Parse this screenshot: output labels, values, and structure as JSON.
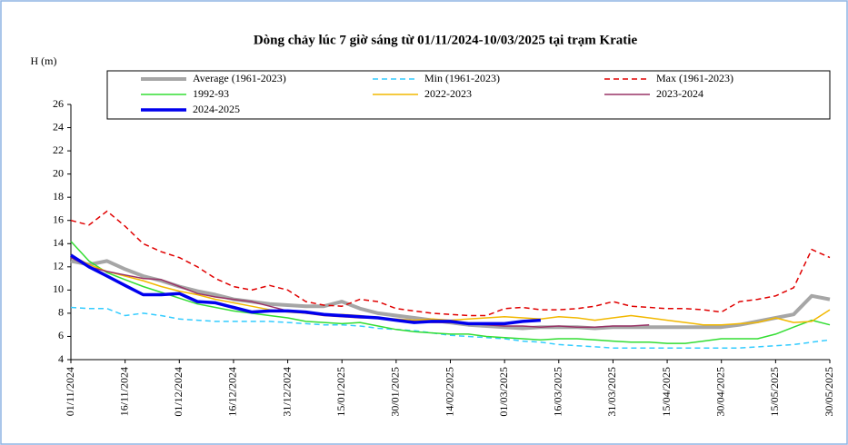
{
  "chart_data": {
    "type": "line",
    "title": "Dòng chảy lúc 7 giờ sáng từ 01/11/2024-10/03/2025 tại trạm Kratie",
    "y_label": "H (m)",
    "categories": [
      "01/11/2024",
      null,
      null,
      "16/11/2024",
      null,
      null,
      "01/12/2024",
      null,
      null,
      "16/12/2024",
      null,
      null,
      "31/12/2024",
      null,
      null,
      "15/01/2025",
      null,
      null,
      "30/01/2025",
      null,
      null,
      "14/02/2025",
      null,
      null,
      "01/03/2025",
      null,
      null,
      "16/03/2025",
      null,
      null,
      "31/03/2025",
      null,
      null,
      "15/04/2025",
      null,
      null,
      "30/04/2025",
      null,
      null,
      "15/05/2025",
      null,
      null,
      "30/05/2025"
    ],
    "ylim": [
      4,
      26
    ],
    "yticks": [
      4,
      6,
      8,
      10,
      12,
      14,
      16,
      18,
      20,
      22,
      24,
      26
    ],
    "grid": false,
    "series": [
      {
        "name": "Average (1961-2023)",
        "color": "#a6a6a6",
        "width": 4,
        "dash": false,
        "values": [
          12.5,
          12.2,
          12.5,
          11.8,
          11.2,
          10.8,
          10.3,
          9.9,
          9.6,
          9.2,
          9.0,
          8.8,
          8.7,
          8.6,
          8.6,
          9.0,
          8.4,
          8.0,
          7.8,
          7.6,
          7.4,
          7.2,
          7.0,
          6.9,
          6.8,
          6.7,
          6.8,
          6.8,
          6.8,
          6.7,
          6.8,
          6.8,
          6.8,
          6.8,
          6.8,
          6.8,
          6.8,
          7.0,
          7.3,
          7.6,
          7.9,
          9.5,
          9.2
        ]
      },
      {
        "name": "Min (1961-2023)",
        "color": "#33ccff",
        "width": 1.5,
        "dash": true,
        "values": [
          8.5,
          8.4,
          8.4,
          7.8,
          8.0,
          7.8,
          7.5,
          7.4,
          7.3,
          7.3,
          7.3,
          7.3,
          7.2,
          7.1,
          7.0,
          7.0,
          6.9,
          6.7,
          6.6,
          6.5,
          6.3,
          6.1,
          6.0,
          5.9,
          5.8,
          5.6,
          5.5,
          5.3,
          5.2,
          5.1,
          5.0,
          5.0,
          5.0,
          5.0,
          5.0,
          5.0,
          5.0,
          5.0,
          5.1,
          5.2,
          5.3,
          5.5,
          5.7
        ]
      },
      {
        "name": "Max (1961-2023)",
        "color": "#e00000",
        "width": 1.5,
        "dash": true,
        "values": [
          16.0,
          15.6,
          16.8,
          15.5,
          14.0,
          13.3,
          12.8,
          12.0,
          11.0,
          10.3,
          10.0,
          10.4,
          10.0,
          9.0,
          8.7,
          8.6,
          9.2,
          9.0,
          8.4,
          8.2,
          8.0,
          7.9,
          7.8,
          7.8,
          8.4,
          8.5,
          8.3,
          8.3,
          8.4,
          8.6,
          9.0,
          8.6,
          8.5,
          8.4,
          8.4,
          8.3,
          8.1,
          9.0,
          9.2,
          9.5,
          10.2,
          13.5,
          12.8
        ]
      },
      {
        "name": "1992-93",
        "color": "#33dd33",
        "width": 1.5,
        "dash": false,
        "values": [
          14.2,
          12.5,
          11.5,
          10.9,
          10.3,
          9.8,
          9.3,
          8.8,
          8.5,
          8.2,
          8.0,
          7.8,
          7.6,
          7.3,
          7.2,
          7.1,
          7.2,
          6.9,
          6.6,
          6.4,
          6.3,
          6.2,
          6.2,
          6.0,
          5.9,
          5.8,
          5.7,
          5.8,
          5.8,
          5.7,
          5.6,
          5.5,
          5.5,
          5.4,
          5.4,
          5.6,
          5.8,
          5.8,
          5.8,
          6.2,
          6.8,
          7.4,
          7.0
        ]
      },
      {
        "name": "2022-2023",
        "color": "#f2b800",
        "width": 1.5,
        "dash": false,
        "values": [
          13.0,
          12.2,
          11.6,
          11.2,
          10.8,
          10.3,
          9.9,
          9.6,
          9.2,
          8.9,
          8.6,
          8.3,
          8.1,
          8.0,
          7.9,
          7.9,
          7.8,
          7.6,
          7.5,
          7.4,
          7.5,
          7.4,
          7.5,
          7.6,
          7.7,
          7.6,
          7.5,
          7.7,
          7.6,
          7.4,
          7.6,
          7.8,
          7.6,
          7.4,
          7.2,
          7.0,
          7.0,
          7.1,
          7.2,
          7.6,
          7.2,
          7.3,
          8.3
        ]
      },
      {
        "name": "2023-2024",
        "color": "#993366",
        "width": 1.5,
        "dash": false,
        "values": [
          12.8,
          12.0,
          11.6,
          11.3,
          11.0,
          10.9,
          10.3,
          9.7,
          9.4,
          9.2,
          9.0,
          8.6,
          8.2,
          8.0,
          7.8,
          7.7,
          7.6,
          7.6,
          7.4,
          7.3,
          7.2,
          7.2,
          7.1,
          7.0,
          6.9,
          6.9,
          6.8,
          6.9,
          6.8,
          6.8,
          6.9,
          6.9,
          7.0,
          null,
          null,
          null,
          null,
          null,
          null,
          null,
          null,
          null,
          null
        ]
      },
      {
        "name": "2024-2025",
        "color": "#0000ee",
        "width": 3.5,
        "dash": false,
        "values": [
          13.0,
          12.0,
          11.2,
          10.4,
          9.6,
          9.6,
          9.7,
          9.0,
          8.9,
          8.5,
          8.1,
          8.2,
          8.2,
          8.1,
          7.9,
          7.8,
          7.7,
          7.6,
          7.4,
          7.2,
          7.3,
          7.3,
          7.1,
          7.1,
          7.1,
          7.3,
          7.4,
          null,
          null,
          null,
          null,
          null,
          null,
          null,
          null,
          null,
          null,
          null,
          null,
          null,
          null,
          null,
          null
        ]
      }
    ]
  }
}
